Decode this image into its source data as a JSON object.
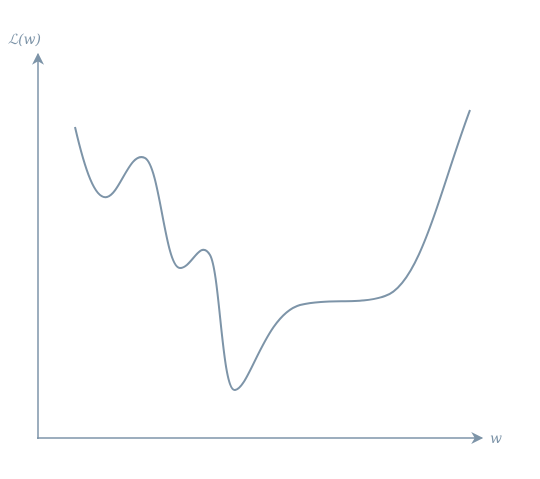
{
  "axes": {
    "y_label": "ℒ(w)",
    "x_label": "w"
  }
}
